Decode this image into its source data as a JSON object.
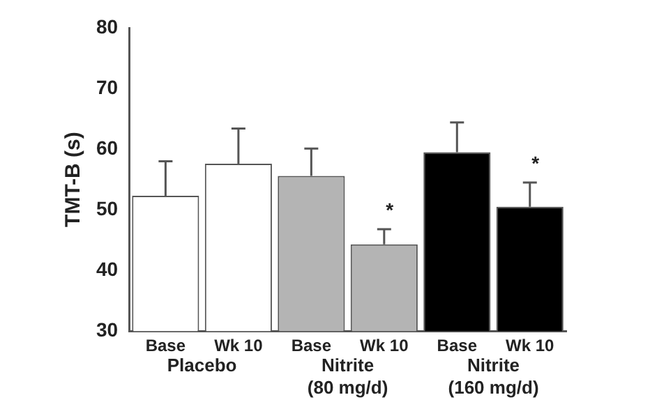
{
  "chart_data": {
    "type": "bar",
    "ylabel": "TMT-B (s)",
    "categories": [
      "Base",
      "Wk 10",
      "Base",
      "Wk 10",
      "Base",
      "Wk 10"
    ],
    "values": [
      52.3,
      57.6,
      55.6,
      44.3,
      59.5,
      50.5
    ],
    "colors": [
      "#ffffff",
      "#ffffff",
      "#b4b4b4",
      "#b4b4b4",
      "#000000",
      "#000000"
    ],
    "errors": [
      [
        52.3,
        58.0
      ],
      [
        57.6,
        63.4
      ],
      [
        55.6,
        60.1
      ],
      [
        44.3,
        46.8
      ],
      [
        59.5,
        64.4
      ],
      [
        50.5,
        54.5
      ]
    ],
    "value_labels": [
      null,
      null,
      null,
      "*",
      null,
      "*"
    ],
    "annotations": [
      "Placebo",
      "Nitrite\n(80 mg/d)",
      "Nitrite\n(160 mg/d)"
    ],
    "ylim": [
      30,
      80
    ],
    "yticks": [
      30,
      40,
      50,
      60,
      70,
      80
    ],
    "grid": false,
    "legend": false
  }
}
